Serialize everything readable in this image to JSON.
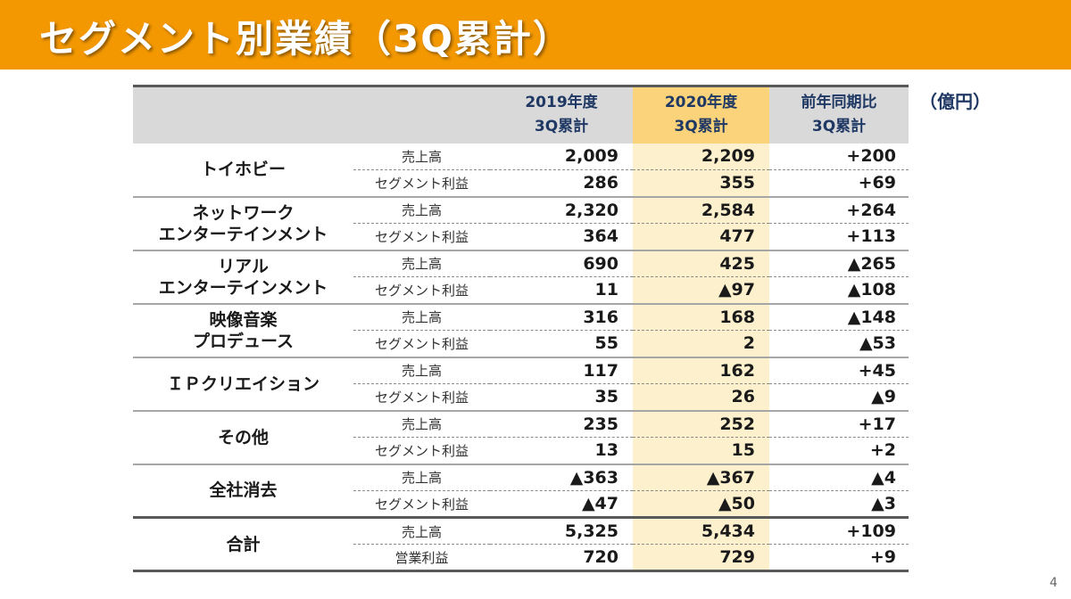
{
  "title": "セグメント別業績（3Q累計）",
  "unit": "（億円）",
  "page_number": "4",
  "header": {
    "col_2019": [
      "2019年度",
      "3Q累計"
    ],
    "col_2020": [
      "2020年度",
      "3Q累計"
    ],
    "col_diff": [
      "前年同期比",
      "3Q累計"
    ]
  },
  "segments": [
    {
      "name": [
        "トイホビー"
      ],
      "rows": [
        {
          "item": "売上高",
          "y2019": "2,009",
          "y2020": "2,209",
          "diff": "+200"
        },
        {
          "item": "セグメント利益",
          "y2019": "286",
          "y2020": "355",
          "diff": "+69"
        }
      ]
    },
    {
      "name": [
        "ネットワーク",
        "エンターテインメント"
      ],
      "rows": [
        {
          "item": "売上高",
          "y2019": "2,320",
          "y2020": "2,584",
          "diff": "+264"
        },
        {
          "item": "セグメント利益",
          "y2019": "364",
          "y2020": "477",
          "diff": "+113"
        }
      ]
    },
    {
      "name": [
        "リアル",
        "エンターテインメント"
      ],
      "rows": [
        {
          "item": "売上高",
          "y2019": "690",
          "y2020": "425",
          "diff": "▲265"
        },
        {
          "item": "セグメント利益",
          "y2019": "11",
          "y2020": "▲97",
          "diff": "▲108"
        }
      ]
    },
    {
      "name": [
        "映像音楽",
        "プロデュース"
      ],
      "rows": [
        {
          "item": "売上高",
          "y2019": "316",
          "y2020": "168",
          "diff": "▲148"
        },
        {
          "item": "セグメント利益",
          "y2019": "55",
          "y2020": "2",
          "diff": "▲53"
        }
      ]
    },
    {
      "name": [
        "ＩＰクリエイション"
      ],
      "rows": [
        {
          "item": "売上高",
          "y2019": "117",
          "y2020": "162",
          "diff": "+45"
        },
        {
          "item": "セグメント利益",
          "y2019": "35",
          "y2020": "26",
          "diff": "▲9"
        }
      ]
    },
    {
      "name": [
        "その他"
      ],
      "rows": [
        {
          "item": "売上高",
          "y2019": "235",
          "y2020": "252",
          "diff": "+17"
        },
        {
          "item": "セグメント利益",
          "y2019": "13",
          "y2020": "15",
          "diff": "+2"
        }
      ]
    },
    {
      "name": [
        "全社消去"
      ],
      "rows": [
        {
          "item": "売上高",
          "y2019": "▲363",
          "y2020": "▲367",
          "diff": "▲4"
        },
        {
          "item": "セグメント利益",
          "y2019": "▲47",
          "y2020": "▲50",
          "diff": "▲3"
        }
      ]
    },
    {
      "name": [
        "合計"
      ],
      "rows": [
        {
          "item": "売上高",
          "y2019": "5,325",
          "y2020": "5,434",
          "diff": "+109"
        },
        {
          "item": "営業利益",
          "y2019": "720",
          "y2020": "729",
          "diff": "+9"
        }
      ]
    }
  ],
  "colors": {
    "title_bar": "#f39800",
    "header_bg": "#d9d9d9",
    "header_highlight": "#fbd37a",
    "column_highlight": "#fdf0cc",
    "header_text": "#1f3864"
  }
}
